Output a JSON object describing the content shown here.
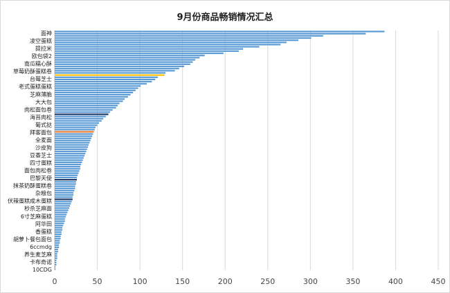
{
  "chart_data": {
    "type": "bar",
    "orientation": "horizontal",
    "title": "9月份商品畅销情况汇总",
    "xlabel": "",
    "ylabel": "",
    "xlim": [
      0,
      450
    ],
    "x_ticks": [
      0,
      50,
      100,
      150,
      200,
      250,
      300,
      350,
      400,
      450
    ],
    "grid": "vertical",
    "legend": "none",
    "bar_color": "#5b9bd5",
    "highlight_colors": [
      "#1f3864",
      "#ed7d31",
      "#a9a9a9",
      "#ffc000"
    ],
    "categories_labeled": [
      "面神",
      "凌空蛋糕",
      "提拉米",
      "欧包袋2",
      "南瓜糯心酥",
      "草莓奶酥蛋糕卷",
      "台莓芝士",
      "老式蛋糕蛋糕",
      "芝麻薄脆",
      "大大包",
      "肉松面包卷",
      "海苔肉松",
      "葡式挞",
      "拜客面包",
      "全麦面",
      "沙皮狗",
      "豆香芝士",
      "四寸蛋糕",
      "面包肉松卷",
      "巴黎天使",
      "抹茶奶酥蛋糕卷",
      "杂粮包",
      "伏辣蛋糕成木蛋糕",
      "秒杀芝麻面",
      "6寸芝麻蛋糕",
      "阿华田",
      "香蛋糕",
      "胡萝卜餐包面包",
      "6ccmdg",
      "养生麦芝麻",
      "卡布奇诺",
      "10CDG"
    ],
    "values": [
      387,
      365,
      315,
      301,
      286,
      272,
      265,
      240,
      221,
      216,
      198,
      176,
      170,
      165,
      162,
      159,
      152,
      146,
      141,
      130,
      129,
      121,
      118,
      114,
      108,
      101,
      98,
      95,
      92,
      89,
      86,
      82,
      80,
      76,
      74,
      72,
      68,
      65,
      63,
      60,
      57,
      55,
      52,
      50,
      48,
      47,
      46,
      45,
      44,
      43,
      42,
      41,
      40,
      39,
      38,
      37,
      36,
      35,
      34,
      33,
      32,
      31,
      30,
      30,
      29,
      28,
      27,
      26,
      26,
      25,
      25,
      24,
      24,
      23,
      22,
      22,
      21,
      21,
      20,
      19,
      18,
      17,
      16,
      15,
      14,
      13,
      12,
      12,
      11,
      10,
      9,
      9,
      8,
      8,
      7,
      7,
      6,
      6,
      5,
      5,
      4,
      4,
      3,
      3,
      3,
      2,
      2,
      2,
      1,
      1
    ],
    "highlighted_bars": [
      {
        "index": 38,
        "color": "#1f3864"
      },
      {
        "index": 46,
        "color": "#ed7d31"
      },
      {
        "index": 68,
        "color": "#1f3864"
      },
      {
        "index": 77,
        "color": "#1f3864"
      },
      {
        "index": 20,
        "color": "#ffc000"
      }
    ]
  }
}
